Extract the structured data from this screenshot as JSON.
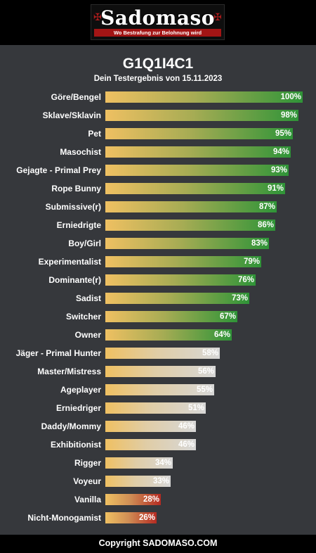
{
  "header": {
    "logo_text": "Sadomaso",
    "logo_tagline": "Wo Bestrafung zur Belohnung wird"
  },
  "colors": {
    "background": "#36383c",
    "green_end": "#2f9438",
    "grey_end": "#d7d7d7",
    "red_end": "#b52b22",
    "bar_start": "#efc062"
  },
  "chart_data": {
    "type": "bar",
    "orientation": "horizontal",
    "title": "G1Q1I4C1",
    "subtitle": "Dein Testergebnis von 15.11.2023",
    "xlim": [
      0,
      100
    ],
    "unit": "%",
    "categories": [
      "Göre/Bengel",
      "Sklave/Sklavin",
      "Pet",
      "Masochist",
      "Gejagte - Primal Prey",
      "Rope Bunny",
      "Submissive(r)",
      "Erniedrigte",
      "Boy/Girl",
      "Experimentalist",
      "Dominante(r)",
      "Sadist",
      "Switcher",
      "Owner",
      "Jäger - Primal Hunter",
      "Master/Mistress",
      "Ageplayer",
      "Erniedriger",
      "Daddy/Mommy",
      "Exhibitionist",
      "Rigger",
      "Voyeur",
      "Vanilla",
      "Nicht-Monogamist"
    ],
    "values": [
      100,
      98,
      95,
      94,
      93,
      91,
      87,
      86,
      83,
      79,
      76,
      73,
      67,
      64,
      58,
      56,
      55,
      51,
      46,
      46,
      34,
      33,
      28,
      26
    ],
    "value_labels": [
      "100%",
      "98%",
      "95%",
      "94%",
      "93%",
      "91%",
      "87%",
      "86%",
      "83%",
      "79%",
      "76%",
      "73%",
      "67%",
      "64%",
      "58%",
      "56%",
      "55%",
      "51%",
      "46%",
      "46%",
      "34%",
      "33%",
      "28%",
      "26%"
    ],
    "bar_colors": [
      "green",
      "green",
      "green",
      "green",
      "green",
      "green",
      "green",
      "green",
      "green",
      "green",
      "green",
      "green",
      "green",
      "green",
      "grey",
      "grey",
      "grey",
      "grey",
      "grey",
      "grey",
      "grey",
      "grey",
      "red",
      "red"
    ]
  },
  "footer": {
    "copyright": "Copyright SADOMASO.COM"
  }
}
